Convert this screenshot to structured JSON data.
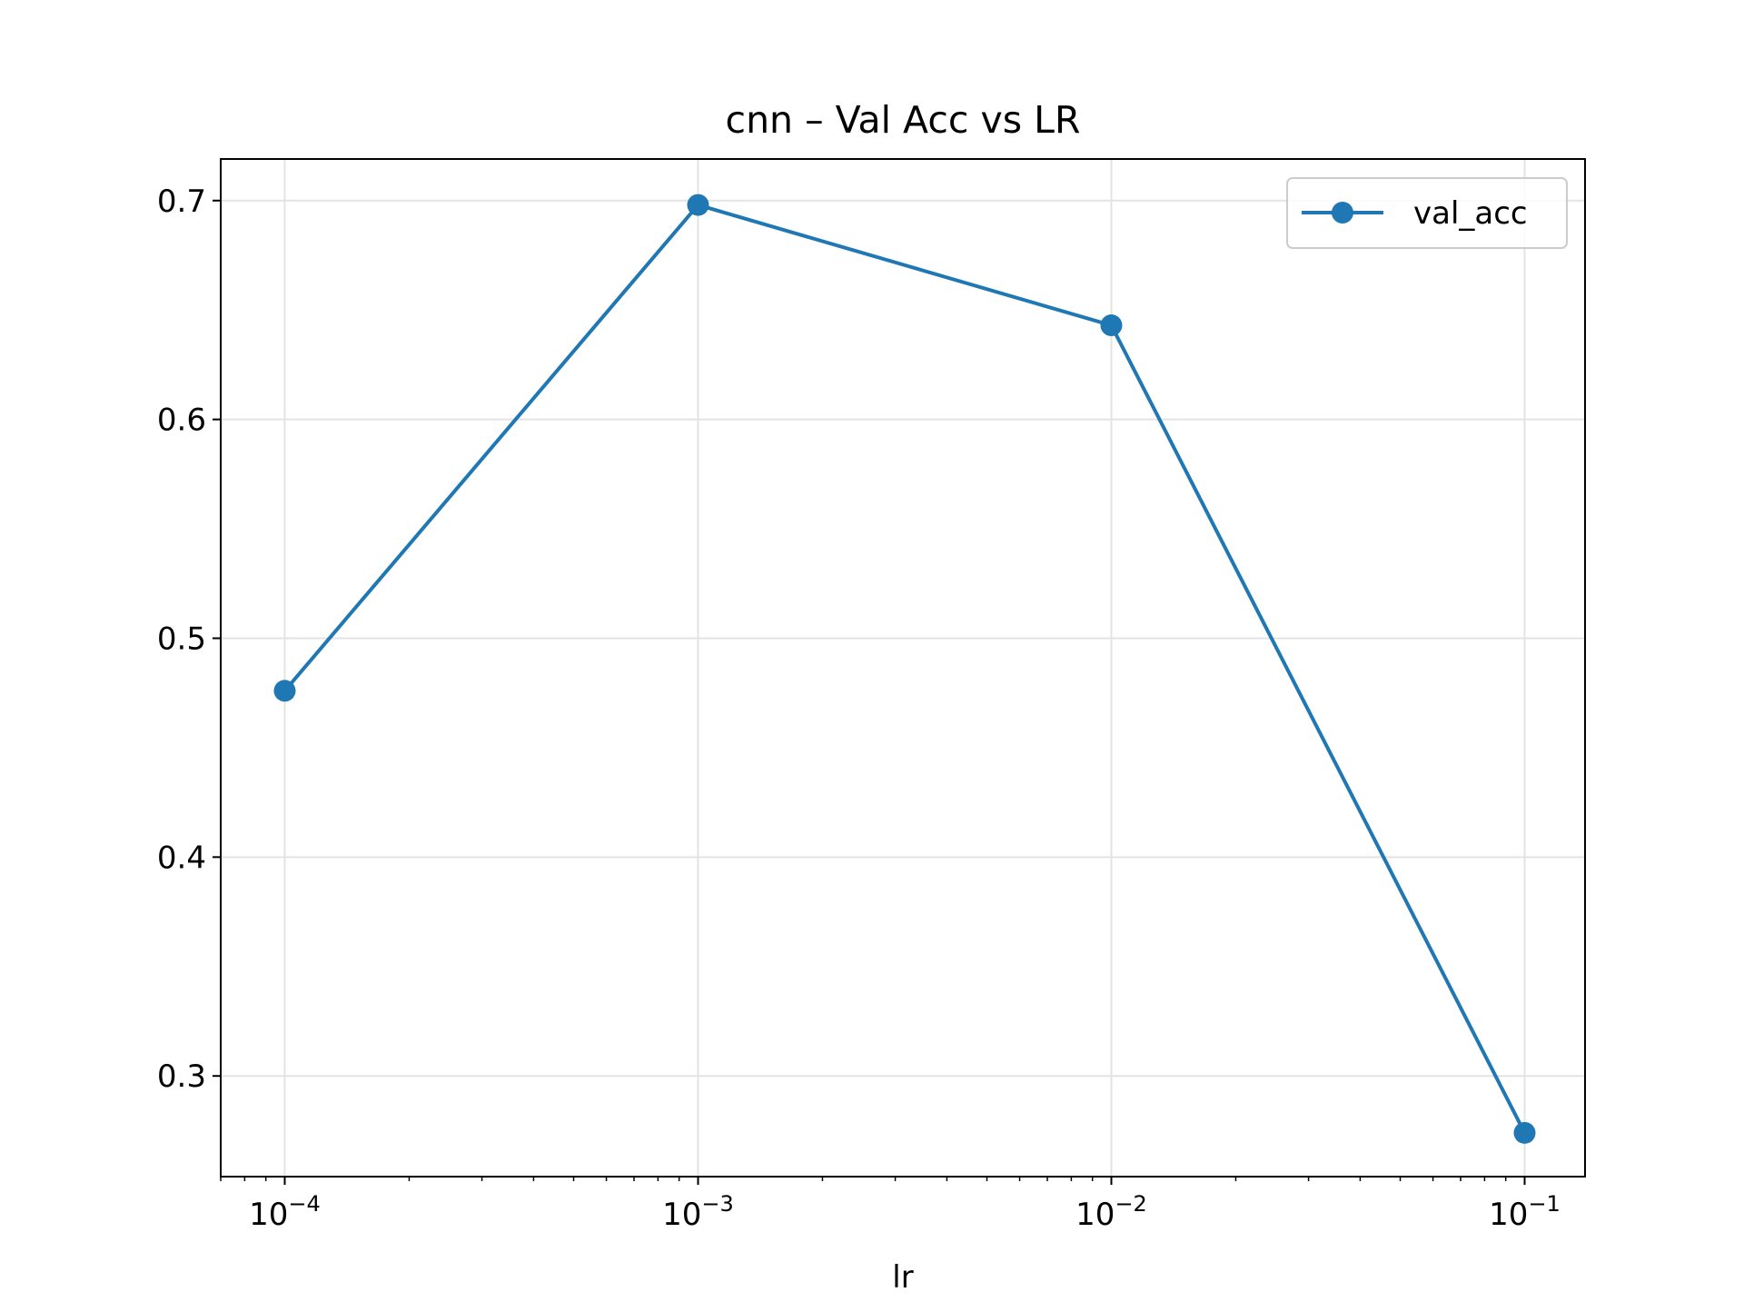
{
  "chart_data": {
    "type": "line",
    "title": "cnn – Val Acc vs LR",
    "xlabel": "lr",
    "ylabel": "",
    "xscale": "log",
    "xlim": [
      7e-05,
      0.14
    ],
    "ylim": [
      0.254,
      0.719
    ],
    "xticks": [
      {
        "value": 0.0001,
        "base": "10",
        "exp": "−4"
      },
      {
        "value": 0.001,
        "base": "10",
        "exp": "−3"
      },
      {
        "value": 0.01,
        "base": "10",
        "exp": "−2"
      },
      {
        "value": 0.1,
        "base": "10",
        "exp": "−1"
      }
    ],
    "yticks": [
      {
        "value": 0.3,
        "label": "0.3"
      },
      {
        "value": 0.4,
        "label": "0.4"
      },
      {
        "value": 0.5,
        "label": "0.5"
      },
      {
        "value": 0.6,
        "label": "0.6"
      },
      {
        "value": 0.7,
        "label": "0.7"
      }
    ],
    "grid": true,
    "legend_position": "top-right",
    "series": [
      {
        "name": "val_acc",
        "color": "#1f77b4",
        "marker": "circle",
        "x": [
          0.0001,
          0.001,
          0.01,
          0.1
        ],
        "y": [
          0.476,
          0.698,
          0.643,
          0.274
        ]
      }
    ]
  }
}
